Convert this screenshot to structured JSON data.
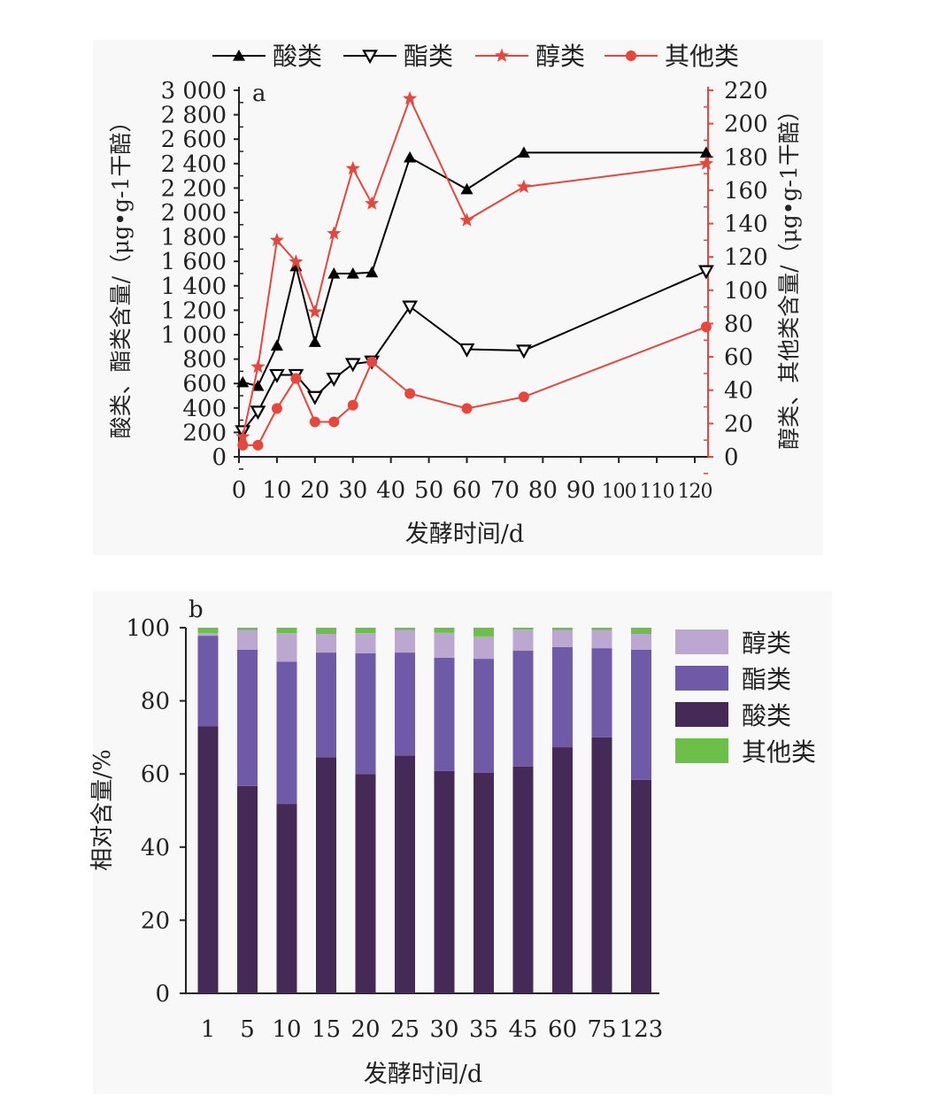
{
  "chart_data": [
    {
      "type": "line",
      "panel_label": "a",
      "xlabel": "发酵时间/d",
      "ylabel_left": "酸类、酯类含量/（μg•g-1干醅）",
      "ylabel_right": "醇类、其他类含量/（μg•g-1干醅）",
      "xlim": [
        0,
        123
      ],
      "xticks": [
        0,
        10,
        20,
        30,
        40,
        50,
        60,
        70,
        80,
        90,
        100,
        110,
        120
      ],
      "ylim_left": [
        0,
        3000
      ],
      "yticks_left": [
        "0",
        "200",
        "400",
        "600",
        "800",
        "1 000",
        "1 200",
        "1 400",
        "1 600",
        "1 800",
        "2 000",
        "2 200",
        "2 400",
        "2 600",
        "2 800",
        "3 000"
      ],
      "ylim_right": [
        0,
        220
      ],
      "yticks_right": [
        "0",
        "20",
        "40",
        "60",
        "80",
        "100",
        "120",
        "140",
        "160",
        "180",
        "200",
        "220"
      ],
      "legend_position": "top",
      "x": [
        1,
        5,
        10,
        15,
        20,
        25,
        30,
        35,
        45,
        60,
        75,
        123
      ],
      "series": [
        {
          "name": "酸类",
          "axis": "left",
          "marker": "triangle-up",
          "color": "#000000",
          "values": [
            610,
            580,
            910,
            1560,
            940,
            1500,
            1500,
            1510,
            2450,
            2190,
            2490,
            2490
          ]
        },
        {
          "name": "酯类",
          "axis": "left",
          "marker": "triangle-down",
          "color": "#000000",
          "values": [
            210,
            370,
            670,
            670,
            490,
            640,
            760,
            780,
            1230,
            880,
            870,
            1520
          ]
        },
        {
          "name": "醇类",
          "axis": "right",
          "marker": "star",
          "color": "#e8463c",
          "values": [
            12,
            54,
            130,
            117,
            87,
            134,
            173,
            152,
            215,
            142,
            162,
            176
          ]
        },
        {
          "name": "其他类",
          "axis": "right",
          "marker": "circle",
          "color": "#e8463c",
          "values": [
            7,
            7,
            29,
            47,
            21,
            21,
            31,
            57,
            38,
            29,
            36,
            78
          ]
        }
      ]
    },
    {
      "type": "bar",
      "stacked": true,
      "panel_label": "b",
      "xlabel": "发酵时间/d",
      "ylabel": "相对含量/%",
      "ylim": [
        0,
        100
      ],
      "yticks": [
        "0",
        "20",
        "40",
        "60",
        "80",
        "100"
      ],
      "categories": [
        "1",
        "5",
        "10",
        "15",
        "20",
        "25",
        "30",
        "35",
        "45",
        "60",
        "75",
        "123"
      ],
      "legend_position": "right",
      "series": [
        {
          "name": "酸类",
          "color": "#452a57",
          "values": [
            73.0,
            56.7,
            51.8,
            64.6,
            60.0,
            65.0,
            60.8,
            60.3,
            62.0,
            67.3,
            70.0,
            58.4
          ]
        },
        {
          "name": "酯类",
          "color": "#6f5aa8",
          "values": [
            24.8,
            37.3,
            38.9,
            28.6,
            33.0,
            28.2,
            31.0,
            31.2,
            31.7,
            27.4,
            24.4,
            35.6
          ]
        },
        {
          "name": "醇类",
          "color": "#bca7d1",
          "values": [
            0.7,
            5.3,
            7.8,
            5.1,
            5.5,
            6.1,
            6.8,
            6.1,
            5.8,
            4.6,
            4.9,
            4.3
          ]
        },
        {
          "name": "其他类",
          "color": "#6cc04a",
          "values": [
            1.5,
            0.7,
            1.5,
            1.7,
            1.5,
            0.7,
            1.4,
            2.4,
            0.5,
            0.7,
            0.7,
            1.7
          ]
        }
      ],
      "legend_order": [
        "醇类",
        "酯类",
        "酸类",
        "其他类"
      ]
    }
  ]
}
